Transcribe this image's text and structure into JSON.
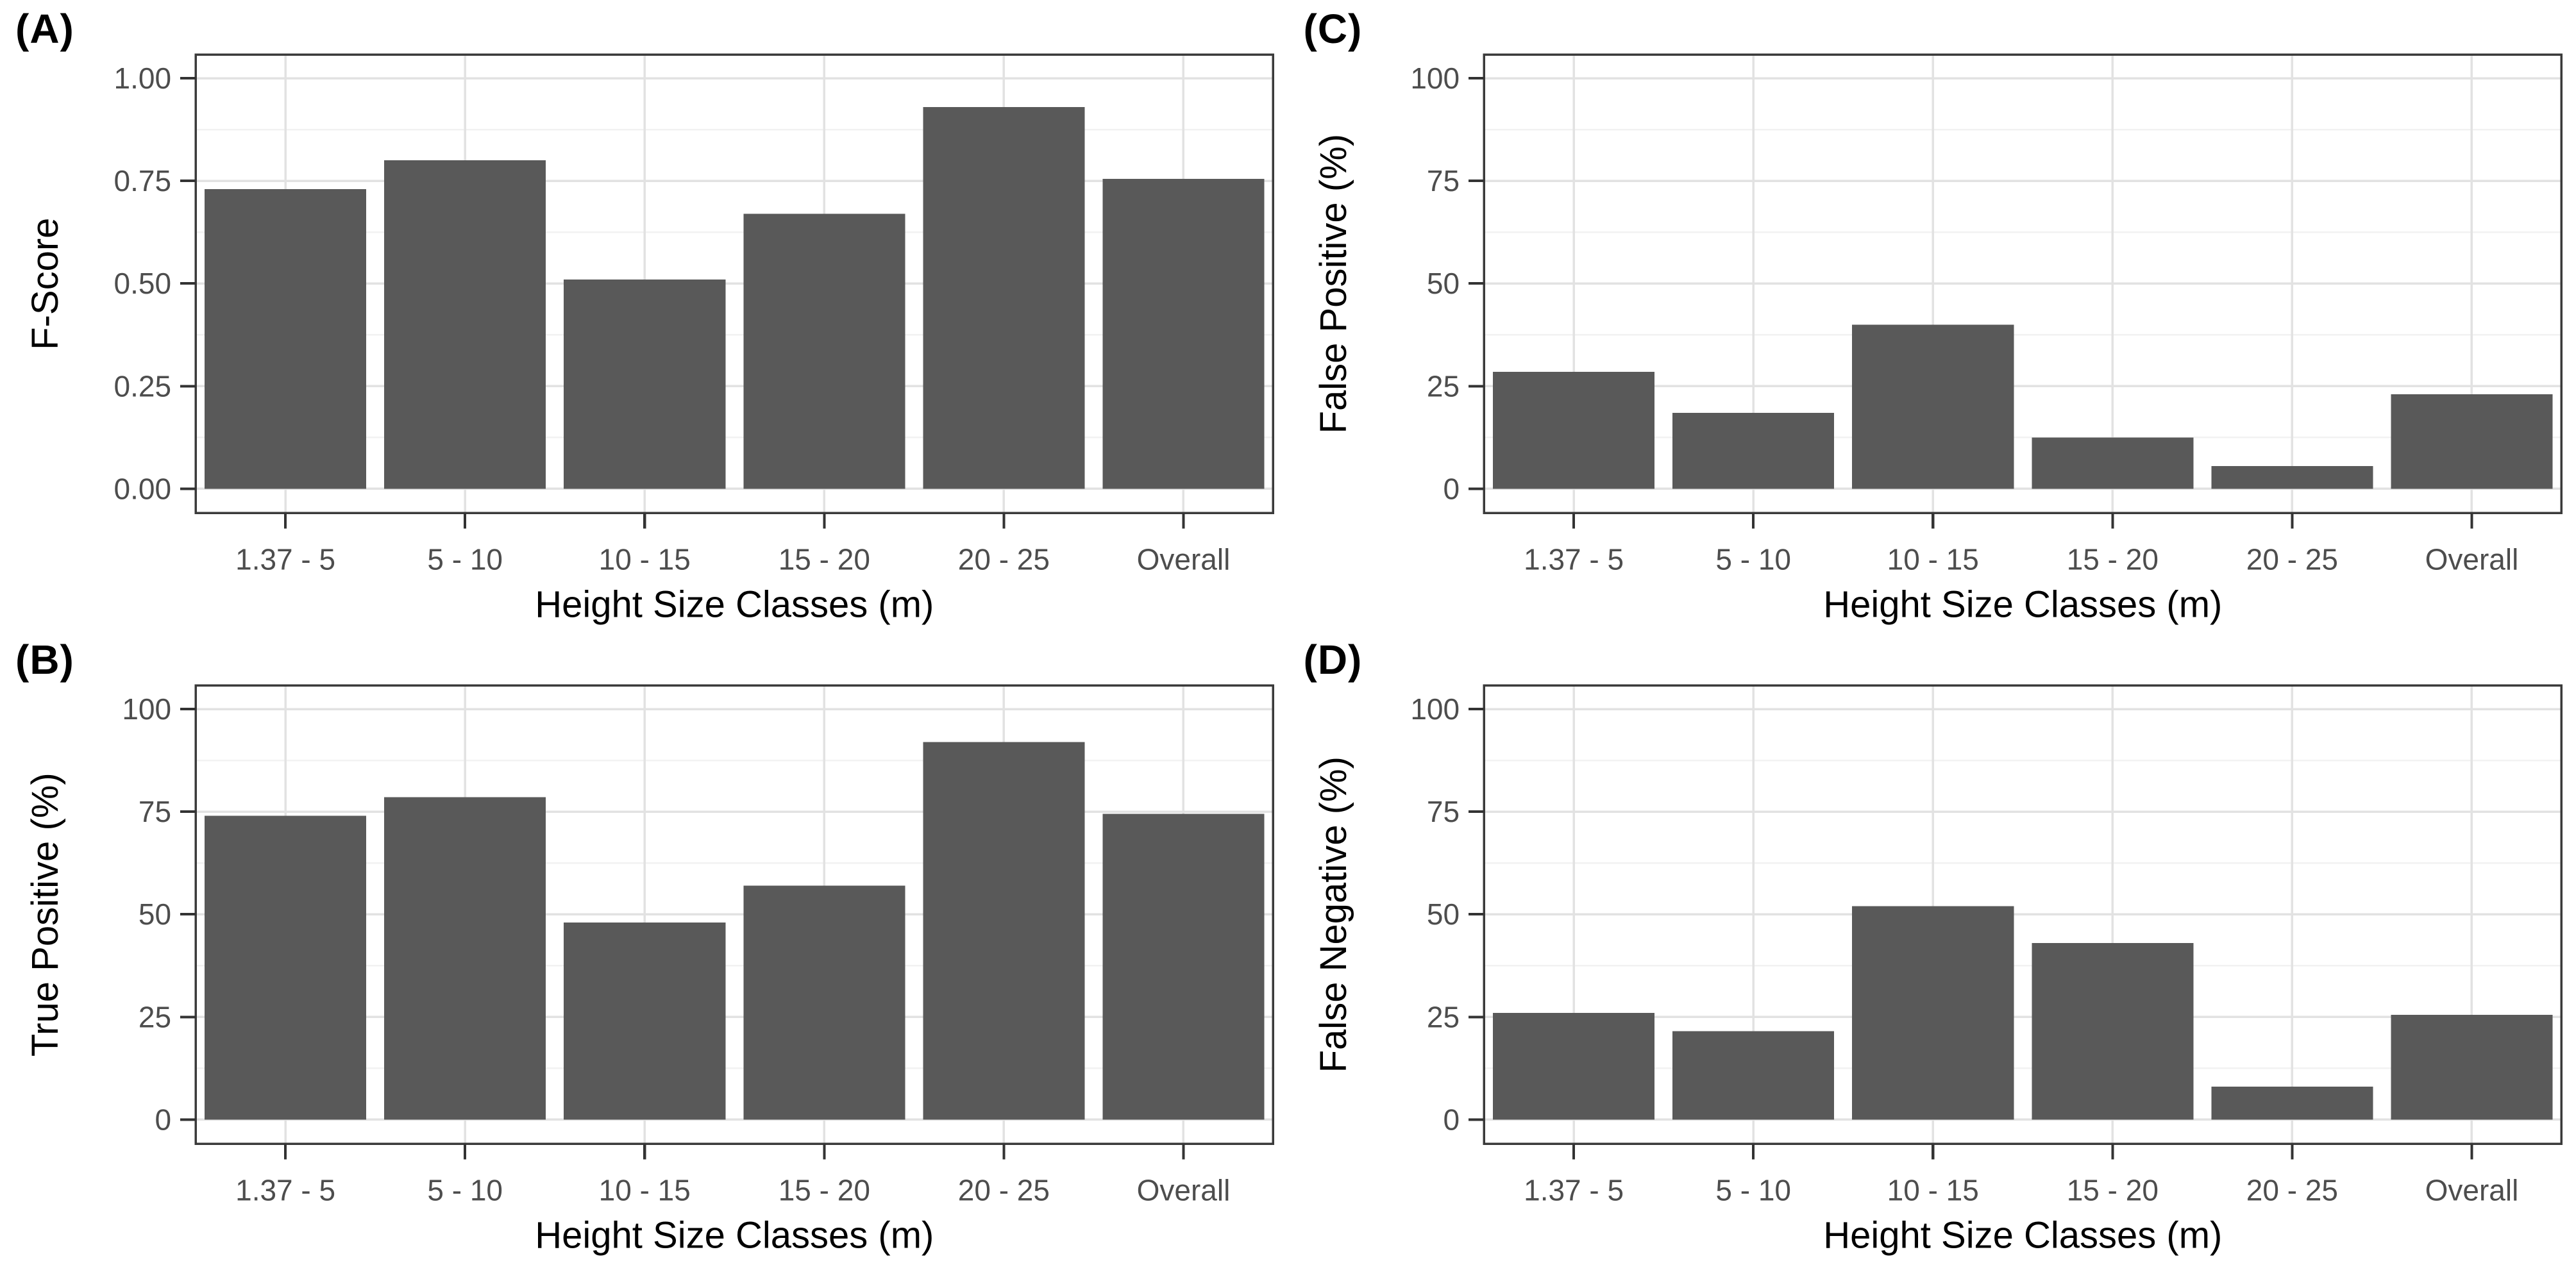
{
  "figure_title": "",
  "colors": {
    "bar_fill": "#595959",
    "panel_border": "#3a3a3a",
    "grid_major": "#e2e2e2",
    "grid_minor": "#f2f2f2",
    "axis_tick": "#333333",
    "tick_label_text": "#4d4d4d",
    "axis_title_text": "#000000",
    "panel_letter_text": "#000000",
    "background": "#ffffff"
  },
  "shared": {
    "xlabel": "Height Size Classes (m)",
    "categories": [
      "1.37 - 5",
      "5 - 10",
      "10 - 15",
      "15 - 20",
      "20 - 25",
      "Overall"
    ]
  },
  "chart_data": [
    {
      "type": "bar",
      "panel_label": "(A)",
      "ylabel": "F-Score",
      "xlabel": "Height Size Classes (m)",
      "categories": [
        "1.37 - 5",
        "5 - 10",
        "10 - 15",
        "15 - 20",
        "20 - 25",
        "Overall"
      ],
      "values": [
        0.73,
        0.8,
        0.51,
        0.67,
        0.93,
        0.755
      ],
      "ylim": [
        0,
        1
      ],
      "ytick_values": [
        0,
        0.25,
        0.5,
        0.75,
        1
      ],
      "ytick_labels": [
        "0.00",
        "0.25",
        "0.50",
        "0.75",
        "1.00"
      ],
      "grid": true,
      "legend": "none"
    },
    {
      "type": "bar",
      "panel_label": "(B)",
      "ylabel": "True Positive (%)",
      "xlabel": "Height Size Classes (m)",
      "categories": [
        "1.37 - 5",
        "5 - 10",
        "10 - 15",
        "15 - 20",
        "20 - 25",
        "Overall"
      ],
      "values": [
        74,
        78.5,
        48,
        57,
        92,
        74.5
      ],
      "ylim": [
        0,
        100
      ],
      "ytick_values": [
        0,
        25,
        50,
        75,
        100
      ],
      "ytick_labels": [
        "0",
        "25",
        "50",
        "75",
        "100"
      ],
      "grid": true,
      "legend": "none"
    },
    {
      "type": "bar",
      "panel_label": "(C)",
      "ylabel": "False Positive (%)",
      "xlabel": "Height Size Classes (m)",
      "categories": [
        "1.37 - 5",
        "5 - 10",
        "10 - 15",
        "15 - 20",
        "20 - 25",
        "Overall"
      ],
      "values": [
        28.5,
        18.5,
        40,
        12.5,
        5.5,
        23
      ],
      "ylim": [
        0,
        100
      ],
      "ytick_values": [
        0,
        25,
        50,
        75,
        100
      ],
      "ytick_labels": [
        "0",
        "25",
        "50",
        "75",
        "100"
      ],
      "grid": true,
      "legend": "none"
    },
    {
      "type": "bar",
      "panel_label": "(D)",
      "ylabel": "False Negative (%)",
      "xlabel": "Height Size Classes (m)",
      "categories": [
        "1.37 - 5",
        "5 - 10",
        "10 - 15",
        "15 - 20",
        "20 - 25",
        "Overall"
      ],
      "values": [
        26,
        21.5,
        52,
        43,
        8,
        25.5
      ],
      "ylim": [
        0,
        100
      ],
      "ytick_values": [
        0,
        25,
        50,
        75,
        100
      ],
      "ytick_labels": [
        "0",
        "25",
        "50",
        "75",
        "100"
      ],
      "grid": true,
      "legend": "none"
    }
  ]
}
